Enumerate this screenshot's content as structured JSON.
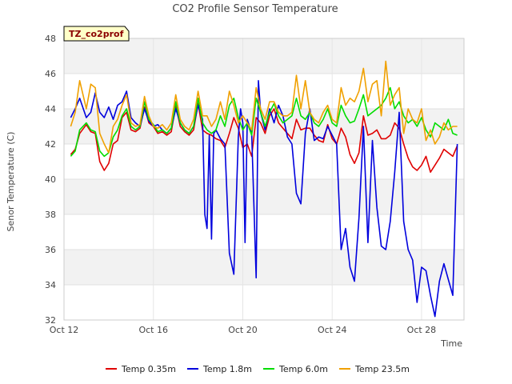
{
  "chart_data": {
    "type": "line",
    "title": "CO2 Profile Sensor Temperature",
    "xlabel": "Time",
    "ylabel": "Senor Temperature (C)",
    "badge": "TZ_co2prof",
    "xlim": [
      12.0,
      29.9
    ],
    "ylim": [
      32,
      48
    ],
    "xticks": [
      {
        "value": 12,
        "label": "Oct 12"
      },
      {
        "value": 16,
        "label": "Oct 16"
      },
      {
        "value": 20,
        "label": "Oct 20"
      },
      {
        "value": 24,
        "label": "Oct 24"
      },
      {
        "value": 28,
        "label": "Oct 28"
      }
    ],
    "yticks": [
      32,
      34,
      36,
      38,
      40,
      42,
      44,
      46,
      48
    ],
    "grid": true,
    "legend_position": "bottom",
    "series": [
      {
        "name": "Temp 0.35m",
        "color": "#e00000",
        "x": [
          12.3,
          12.5,
          12.7,
          13.0,
          13.2,
          13.4,
          13.6,
          13.8,
          14.0,
          14.2,
          14.4,
          14.6,
          14.8,
          15.0,
          15.2,
          15.4,
          15.6,
          15.8,
          16.0,
          16.2,
          16.4,
          16.6,
          16.8,
          17.0,
          17.2,
          17.4,
          17.6,
          17.8,
          18.0,
          18.2,
          18.4,
          18.6,
          18.8,
          19.0,
          19.2,
          19.4,
          19.6,
          19.8,
          20.0,
          20.2,
          20.4,
          20.6,
          20.8,
          21.0,
          21.2,
          21.4,
          21.6,
          21.8,
          22.0,
          22.2,
          22.4,
          22.6,
          22.8,
          23.0,
          23.2,
          23.4,
          23.6,
          23.8,
          24.0,
          24.2,
          24.4,
          24.6,
          24.8,
          25.0,
          25.2,
          25.4,
          25.6,
          25.8,
          26.0,
          26.2,
          26.4,
          26.6,
          26.8,
          27.0,
          27.2,
          27.4,
          27.6,
          27.8,
          28.0,
          28.2,
          28.4,
          28.6,
          28.8,
          29.0,
          29.2,
          29.4,
          29.6
        ],
        "y": [
          41.4,
          41.7,
          42.6,
          43.1,
          42.7,
          42.6,
          41.0,
          40.5,
          40.9,
          42.0,
          42.2,
          43.5,
          43.8,
          42.8,
          42.7,
          42.9,
          44.1,
          43.2,
          43.0,
          42.6,
          42.7,
          42.5,
          42.7,
          44.2,
          43.0,
          42.7,
          42.5,
          42.8,
          44.3,
          42.8,
          42.6,
          42.5,
          42.3,
          42.2,
          41.8,
          42.6,
          43.5,
          42.9,
          41.8,
          42.0,
          41.3,
          43.5,
          43.2,
          42.6,
          43.6,
          44.0,
          43.2,
          42.9,
          42.6,
          42.3,
          43.4,
          42.8,
          42.9,
          42.9,
          42.5,
          42.2,
          42.1,
          43.1,
          42.3,
          42.0,
          42.9,
          42.4,
          41.4,
          40.9,
          41.5,
          43.6,
          42.5,
          42.6,
          42.8,
          42.3,
          42.3,
          42.5,
          43.2,
          42.9,
          42.0,
          41.2,
          40.7,
          40.5,
          40.8,
          41.3,
          40.4,
          40.8,
          41.2,
          41.7,
          41.5,
          41.3,
          41.9
        ]
      },
      {
        "name": "Temp 1.8m",
        "color": "#0000dd",
        "x": [
          12.3,
          12.5,
          12.7,
          13.0,
          13.2,
          13.4,
          13.6,
          13.8,
          14.0,
          14.2,
          14.4,
          14.6,
          14.8,
          15.0,
          15.2,
          15.4,
          15.6,
          15.8,
          16.0,
          16.2,
          16.4,
          16.6,
          16.8,
          17.0,
          17.2,
          17.4,
          17.6,
          17.8,
          18.0,
          18.2,
          18.3,
          18.4,
          18.5,
          18.6,
          18.7,
          18.8,
          19.0,
          19.2,
          19.4,
          19.6,
          19.8,
          19.9,
          20.0,
          20.1,
          20.2,
          20.4,
          20.6,
          20.7,
          20.8,
          21.0,
          21.2,
          21.4,
          21.6,
          21.8,
          22.0,
          22.2,
          22.4,
          22.6,
          22.8,
          23.0,
          23.2,
          23.4,
          23.6,
          23.8,
          24.0,
          24.2,
          24.4,
          24.6,
          24.8,
          25.0,
          25.2,
          25.4,
          25.6,
          25.8,
          26.0,
          26.2,
          26.4,
          26.6,
          26.8,
          27.0,
          27.2,
          27.4,
          27.6,
          27.8,
          28.0,
          28.2,
          28.4,
          28.6,
          28.8,
          29.0,
          29.2,
          29.4,
          29.6
        ],
        "y": [
          43.5,
          44.0,
          44.6,
          43.5,
          43.8,
          44.9,
          43.8,
          43.5,
          44.1,
          43.4,
          44.2,
          44.4,
          45.0,
          43.5,
          43.2,
          43.0,
          44.0,
          43.3,
          43.0,
          43.1,
          42.8,
          42.6,
          42.9,
          44.0,
          43.2,
          42.8,
          42.6,
          43.0,
          44.2,
          43.4,
          38.0,
          37.2,
          42.5,
          36.6,
          42.6,
          42.8,
          42.3,
          42.0,
          35.8,
          34.6,
          42.4,
          44.0,
          43.2,
          36.4,
          43.4,
          42.6,
          34.4,
          45.6,
          43.8,
          42.8,
          44.0,
          43.2,
          44.2,
          43.6,
          42.4,
          42.0,
          39.2,
          38.6,
          42.6,
          44.0,
          42.2,
          42.4,
          42.3,
          43.0,
          42.5,
          42.0,
          36.0,
          37.2,
          35.0,
          34.2,
          37.8,
          43.0,
          36.4,
          42.2,
          38.4,
          36.2,
          36.0,
          37.6,
          40.4,
          43.8,
          37.6,
          36.0,
          35.4,
          33.0,
          35.0,
          34.8,
          33.4,
          32.2,
          34.2,
          35.2,
          34.3,
          33.4,
          42.0
        ]
      },
      {
        "name": "Temp 6.0m",
        "color": "#00dd00",
        "x": [
          12.3,
          12.5,
          12.7,
          13.0,
          13.2,
          13.4,
          13.6,
          13.8,
          14.0,
          14.2,
          14.4,
          14.6,
          14.8,
          15.0,
          15.2,
          15.4,
          15.6,
          15.8,
          16.0,
          16.2,
          16.4,
          16.6,
          16.8,
          17.0,
          17.2,
          17.4,
          17.6,
          17.8,
          18.0,
          18.2,
          18.4,
          18.6,
          18.8,
          19.0,
          19.2,
          19.4,
          19.6,
          19.8,
          20.0,
          20.2,
          20.4,
          20.6,
          20.8,
          21.0,
          21.2,
          21.4,
          21.6,
          21.8,
          22.0,
          22.2,
          22.4,
          22.6,
          22.8,
          23.0,
          23.2,
          23.4,
          23.6,
          23.8,
          24.0,
          24.2,
          24.4,
          24.6,
          24.8,
          25.0,
          25.2,
          25.4,
          25.6,
          25.8,
          26.0,
          26.2,
          26.4,
          26.6,
          26.8,
          27.0,
          27.2,
          27.4,
          27.6,
          27.8,
          28.0,
          28.2,
          28.4,
          28.6,
          28.8,
          29.0,
          29.2,
          29.4,
          29.6
        ],
        "y": [
          41.3,
          41.6,
          42.8,
          43.2,
          42.8,
          42.7,
          41.6,
          41.3,
          41.5,
          42.4,
          42.8,
          43.6,
          44.0,
          43.0,
          42.8,
          43.0,
          44.4,
          43.4,
          43.1,
          42.7,
          42.8,
          42.6,
          42.9,
          44.4,
          43.2,
          42.8,
          42.6,
          43.0,
          44.6,
          43.2,
          42.8,
          42.6,
          42.8,
          43.6,
          43.0,
          44.2,
          44.6,
          43.5,
          42.8,
          43.2,
          42.5,
          44.6,
          43.8,
          43.0,
          43.8,
          44.3,
          43.6,
          43.2,
          43.4,
          43.6,
          44.6,
          43.6,
          43.4,
          43.8,
          43.2,
          43.0,
          43.4,
          44.0,
          43.2,
          43.0,
          44.2,
          43.6,
          43.2,
          43.3,
          44.0,
          44.8,
          43.6,
          43.8,
          44.0,
          44.2,
          44.6,
          45.2,
          44.0,
          44.4,
          43.6,
          43.2,
          43.4,
          43.0,
          43.5,
          42.8,
          42.4,
          43.2,
          43.0,
          42.8,
          43.4,
          42.6,
          42.5
        ]
      },
      {
        "name": "Temp 23.5m",
        "color": "#f0a000",
        "x": [
          12.3,
          12.5,
          12.7,
          13.0,
          13.2,
          13.4,
          13.6,
          13.8,
          14.0,
          14.2,
          14.4,
          14.6,
          14.8,
          15.0,
          15.2,
          15.4,
          15.6,
          15.8,
          16.0,
          16.2,
          16.4,
          16.6,
          16.8,
          17.0,
          17.2,
          17.4,
          17.6,
          17.8,
          18.0,
          18.2,
          18.4,
          18.6,
          18.8,
          19.0,
          19.2,
          19.4,
          19.6,
          19.8,
          20.0,
          20.2,
          20.4,
          20.6,
          20.8,
          21.0,
          21.2,
          21.4,
          21.6,
          21.8,
          22.0,
          22.2,
          22.4,
          22.6,
          22.8,
          23.0,
          23.2,
          23.4,
          23.6,
          23.8,
          24.0,
          24.2,
          24.4,
          24.6,
          24.8,
          25.0,
          25.2,
          25.4,
          25.6,
          25.8,
          26.0,
          26.2,
          26.4,
          26.6,
          26.8,
          27.0,
          27.2,
          27.4,
          27.6,
          27.8,
          28.0,
          28.2,
          28.4,
          28.6,
          28.8,
          29.0,
          29.2,
          29.4,
          29.6
        ],
        "y": [
          43.0,
          43.8,
          45.6,
          44.0,
          45.4,
          45.2,
          42.6,
          42.0,
          41.5,
          43.0,
          43.4,
          44.2,
          44.8,
          43.2,
          43.0,
          43.1,
          44.7,
          43.6,
          43.0,
          42.9,
          43.1,
          42.8,
          43.2,
          44.8,
          43.4,
          43.0,
          42.8,
          43.4,
          45.0,
          43.6,
          43.6,
          43.0,
          43.4,
          44.4,
          43.4,
          45.0,
          44.2,
          43.2,
          43.6,
          43.2,
          42.8,
          45.2,
          44.0,
          43.4,
          44.4,
          44.4,
          43.8,
          43.6,
          43.6,
          43.8,
          45.9,
          44.0,
          45.6,
          43.8,
          43.4,
          43.2,
          43.8,
          44.2,
          43.4,
          43.2,
          45.2,
          44.2,
          44.6,
          44.4,
          45.0,
          46.3,
          44.4,
          45.4,
          45.6,
          43.6,
          46.7,
          44.2,
          44.8,
          45.2,
          42.6,
          44.0,
          43.4,
          43.2,
          44.0,
          42.2,
          42.8,
          42.0,
          42.4,
          43.2,
          42.8,
          43.0,
          43.0
        ]
      }
    ]
  }
}
